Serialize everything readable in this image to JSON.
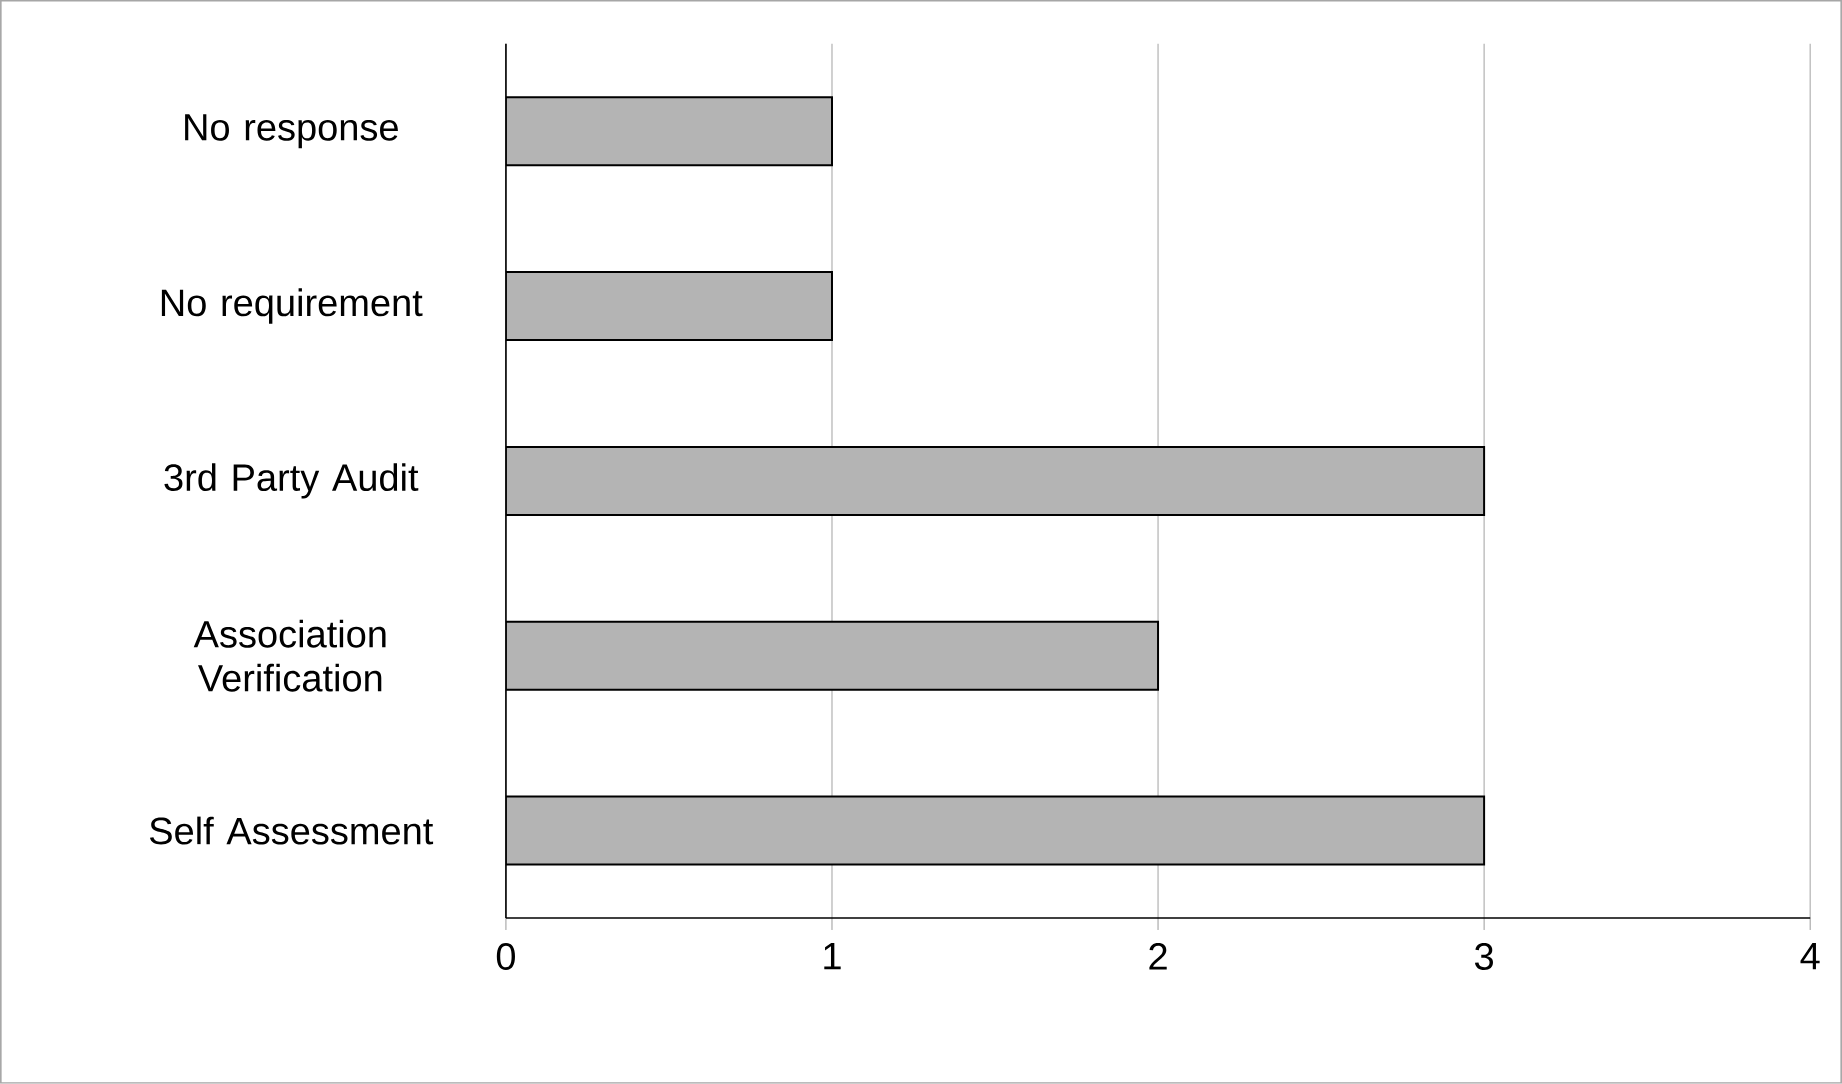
{
  "chart_data": {
    "type": "bar",
    "orientation": "horizontal",
    "categories": [
      "No response",
      "No requirement",
      "3rd Party Audit",
      "Association Verification",
      "Self Assessment"
    ],
    "values": [
      1,
      1,
      3,
      2,
      3
    ],
    "color": "#b4b4b4",
    "xlim": [
      0,
      4
    ],
    "xticks": [
      0,
      1,
      2,
      3,
      4
    ],
    "grid": "x"
  }
}
